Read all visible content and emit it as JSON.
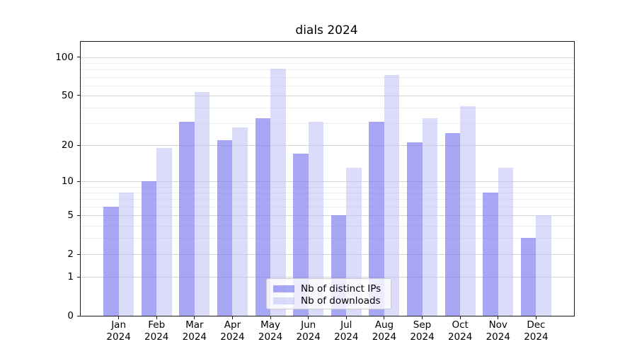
{
  "chart_data": {
    "type": "bar",
    "title": "dials 2024",
    "categories": [
      "Jan 2024",
      "Feb 2024",
      "Mar 2024",
      "Apr 2024",
      "May 2024",
      "Jun 2024",
      "Jul 2024",
      "Aug 2024",
      "Sep 2024",
      "Oct 2024",
      "Nov 2024",
      "Dec 2024"
    ],
    "series": [
      {
        "name": "Nb of distinct IPs",
        "color": "rgba(120,120,240,0.65)",
        "values": [
          6,
          10,
          31,
          22,
          33,
          17,
          5,
          31,
          21,
          25,
          8,
          3
        ]
      },
      {
        "name": "Nb of downloads",
        "color": "rgba(190,190,245,0.55)",
        "values": [
          8,
          19,
          53,
          28,
          81,
          31,
          13,
          72,
          33,
          41,
          13,
          5
        ]
      }
    ],
    "yscale": "log1p",
    "ylim": [
      0,
      132
    ],
    "y_tick_values": [
      0,
      1,
      2,
      5,
      10,
      20,
      50,
      100
    ],
    "y_minor_gridlines": [
      3,
      4,
      6,
      7,
      8,
      9,
      30,
      40,
      60,
      70,
      80,
      90
    ],
    "grid": true,
    "bar_width_fraction": 0.4,
    "legend_position": "lower center inside"
  },
  "colors": {
    "background": "#ffffff",
    "axis": "#1a1a1a",
    "grid_major": "#d4d4d4",
    "grid_minor": "#ededed",
    "legend_border": "#cccccc",
    "legend_background": "rgba(255,255,255,0.8)"
  }
}
